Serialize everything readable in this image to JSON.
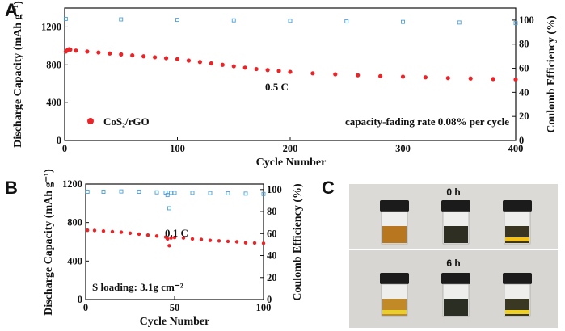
{
  "chart_data": [
    {
      "panel": "A",
      "type": "scatter",
      "xlabel": "Cycle Number",
      "ylabel": "Discharge Capacity (mAh g⁻¹)",
      "y2label": "Coulomb Efficiency (%)",
      "xlim": [
        0,
        400
      ],
      "ylim": [
        0,
        1400
      ],
      "y2lim": [
        0,
        110
      ],
      "xticks": [
        0,
        100,
        200,
        300,
        400
      ],
      "yticks": [
        0,
        400,
        800,
        1200
      ],
      "y2ticks": [
        0,
        20,
        40,
        60,
        80,
        100
      ],
      "legend": "CoS₂/rGO",
      "rate_label": "0.5 C",
      "fading_label": "capacity-fading rate 0.08% per cycle",
      "series": [
        {
          "name": "Discharge Capacity",
          "axis": "left",
          "color": "#e8262a",
          "marker": "filled-circle",
          "x": [
            1,
            2,
            3,
            4,
            5,
            10,
            20,
            30,
            40,
            50,
            60,
            70,
            80,
            90,
            100,
            110,
            120,
            130,
            140,
            150,
            160,
            170,
            180,
            190,
            200,
            220,
            240,
            260,
            280,
            300,
            320,
            340,
            360,
            380,
            400
          ],
          "values": [
            940,
            950,
            960,
            965,
            960,
            950,
            940,
            930,
            920,
            910,
            900,
            890,
            880,
            870,
            860,
            845,
            830,
            815,
            800,
            785,
            770,
            755,
            745,
            735,
            725,
            710,
            700,
            690,
            680,
            675,
            668,
            660,
            655,
            650,
            645
          ]
        },
        {
          "name": "Coulomb Efficiency",
          "axis": "right",
          "color": "#4a9fd8",
          "marker": "open-square",
          "x": [
            1,
            50,
            100,
            150,
            200,
            250,
            300,
            350,
            400
          ],
          "values": [
            101,
            100.6,
            100.2,
            99.8,
            99.4,
            99,
            98.5,
            98,
            97.5
          ]
        }
      ]
    },
    {
      "panel": "B",
      "type": "scatter",
      "xlabel": "Cycle Number",
      "ylabel": "Discharge Capacity (mAh g⁻¹)",
      "y2label": "Coulomb Efficiency (%)",
      "xlim": [
        0,
        100
      ],
      "ylim": [
        0,
        1200
      ],
      "y2lim": [
        0,
        105
      ],
      "xticks": [
        0,
        50,
        100
      ],
      "yticks": [
        0,
        400,
        800,
        1200
      ],
      "y2ticks": [
        0,
        20,
        40,
        60,
        80,
        100
      ],
      "rate_label": "0.1 C",
      "loading_label": "S loading: 3.1g cm⁻²",
      "series": [
        {
          "name": "Discharge Capacity",
          "axis": "left",
          "color": "#e8262a",
          "marker": "filled-circle",
          "x": [
            1,
            5,
            10,
            15,
            20,
            25,
            30,
            35,
            40,
            45,
            46,
            47,
            48,
            50,
            55,
            60,
            65,
            70,
            75,
            80,
            85,
            90,
            95,
            100
          ],
          "values": [
            720,
            718,
            712,
            705,
            700,
            690,
            680,
            670,
            660,
            650,
            630,
            560,
            640,
            645,
            640,
            630,
            625,
            615,
            610,
            605,
            600,
            590,
            588,
            585
          ]
        },
        {
          "name": "Coulomb Efficiency",
          "axis": "right",
          "color": "#4a9fd8",
          "marker": "open-square",
          "x": [
            1,
            10,
            20,
            30,
            40,
            45,
            46,
            47,
            48,
            50,
            60,
            70,
            80,
            90,
            100
          ],
          "values": [
            98,
            98,
            98.3,
            98,
            97.5,
            97.3,
            95,
            83,
            97,
            97,
            97,
            96.8,
            96.6,
            96.3,
            96
          ]
        }
      ]
    }
  ],
  "panels": {
    "a": "A",
    "b": "B",
    "c": "C"
  },
  "photos": {
    "top_label": "0 h",
    "bottom_label": "6 h"
  }
}
